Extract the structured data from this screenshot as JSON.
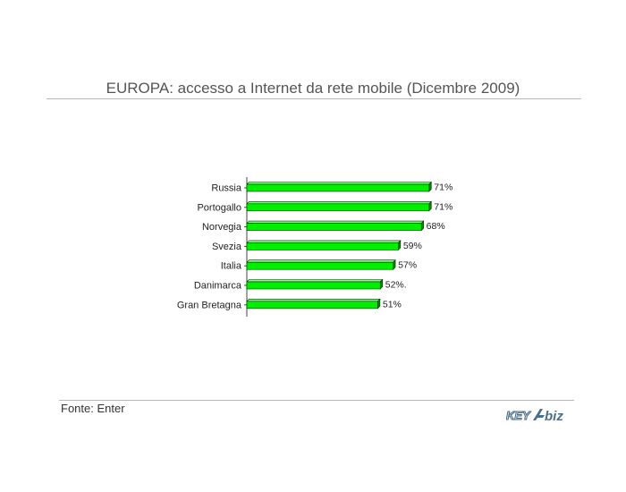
{
  "title": "EUROPA: accesso a Internet da rete mobile (Dicembre 2009)",
  "source": "Fonte: Enter",
  "logo_text": "KEY4biz",
  "colors": {
    "bar": "#00ee00",
    "bar_top": "#7cff7c",
    "bar_end": "#008800",
    "bar_outline": "#003300",
    "text": "#222222"
  },
  "chart_data": {
    "type": "bar",
    "orientation": "horizontal",
    "title": "EUROPA: accesso a Internet da rete mobile (Dicembre 2009)",
    "categories": [
      "Russia",
      "Portogallo",
      "Norvegia",
      "Svezia",
      "Italia",
      "Danimarca",
      "Gran Bretagna"
    ],
    "values": [
      71,
      71,
      68,
      59,
      57,
      52,
      51
    ],
    "data_labels": [
      "71%",
      "71%",
      "68%",
      "59%",
      "57%",
      "52%.",
      "51%"
    ],
    "xlim": [
      0,
      100
    ],
    "grid": false,
    "legend": "none"
  }
}
